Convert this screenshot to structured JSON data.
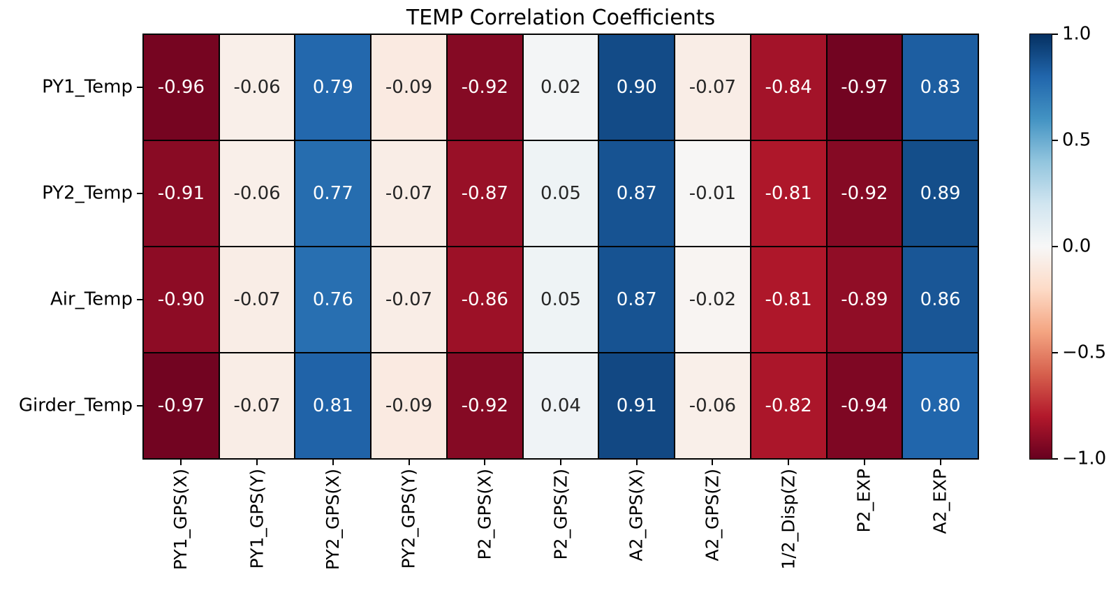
{
  "chart_data": {
    "type": "heatmap",
    "title": "TEMP Correlation Coefficients",
    "rows": [
      "PY1_Temp",
      "PY2_Temp",
      "Air_Temp",
      "Girder_Temp"
    ],
    "columns": [
      "PY1_GPS(X)",
      "PY1_GPS(Y)",
      "PY2_GPS(X)",
      "PY2_GPS(Y)",
      "P2_GPS(X)",
      "P2_GPS(Z)",
      "A2_GPS(X)",
      "A2_GPS(Z)",
      "1/2_Disp(Z)",
      "P2_EXP",
      "A2_EXP"
    ],
    "matrix": [
      [
        -0.96,
        -0.06,
        0.79,
        -0.09,
        -0.92,
        0.02,
        0.9,
        -0.07,
        -0.84,
        -0.97,
        0.83
      ],
      [
        -0.91,
        -0.06,
        0.77,
        -0.07,
        -0.87,
        0.05,
        0.87,
        -0.01,
        -0.81,
        -0.92,
        0.89
      ],
      [
        -0.9,
        -0.07,
        0.76,
        -0.07,
        -0.86,
        0.05,
        0.87,
        -0.02,
        -0.81,
        -0.89,
        0.86
      ],
      [
        -0.97,
        -0.07,
        0.81,
        -0.09,
        -0.92,
        0.04,
        0.91,
        -0.06,
        -0.82,
        -0.94,
        0.8
      ]
    ],
    "value_decimals": 2,
    "value_range": [
      -1.0,
      1.0
    ],
    "colormap_rdbu_low_to_high": [
      "#67001f",
      "#b2182b",
      "#d6604d",
      "#f4a582",
      "#fddbc7",
      "#f7f7f7",
      "#d1e5f0",
      "#92c5de",
      "#4393c3",
      "#2166ac",
      "#053061"
    ],
    "cell_text_color_on_dark": "#ffffff",
    "cell_text_color_on_light": "#262626",
    "grid_line_color": "#000000",
    "background_color": "#ffffff",
    "legend_position": "right-colorbar",
    "colorbar": {
      "ticks": [
        {
          "value": 1.0,
          "label": "1.0"
        },
        {
          "value": 0.5,
          "label": "0.5"
        },
        {
          "value": 0.0,
          "label": "0.0"
        },
        {
          "value": -0.5,
          "label": "−0.5"
        },
        {
          "value": -1.0,
          "label": "−1.0"
        }
      ]
    }
  }
}
